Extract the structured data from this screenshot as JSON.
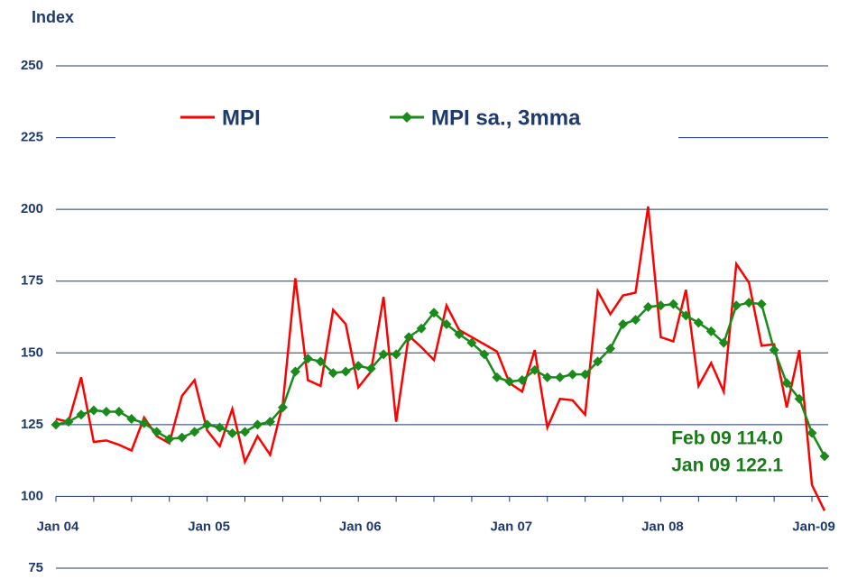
{
  "chart_data": {
    "type": "line",
    "title": "Index",
    "categories": [
      "Jan 04",
      null,
      null,
      null,
      null,
      null,
      null,
      null,
      null,
      null,
      null,
      null,
      "Jan 05",
      null,
      null,
      null,
      null,
      null,
      null,
      null,
      null,
      null,
      null,
      null,
      "Jan  06",
      null,
      null,
      null,
      null,
      null,
      null,
      null,
      null,
      null,
      null,
      null,
      "Jan  07",
      null,
      null,
      null,
      null,
      null,
      null,
      null,
      null,
      null,
      null,
      null,
      "Jan 08",
      null,
      null,
      null,
      null,
      null,
      null,
      null,
      null,
      null,
      null,
      null,
      "Jan-09",
      null
    ],
    "series": [
      {
        "name": "MPI",
        "color": "#ff0000",
        "marker": false,
        "values": [
          127,
          126,
          141.5,
          119,
          119.5,
          118,
          116,
          127.5,
          121,
          118.5,
          135,
          140.5,
          123,
          117.5,
          130.5,
          112,
          121,
          114.5,
          132,
          176,
          140.5,
          138.5,
          165,
          160,
          138,
          143.5,
          169.5,
          126,
          156,
          152,
          147.5,
          166.5,
          158,
          155.5,
          153,
          150.5,
          139.5,
          136.5,
          151,
          124,
          134,
          133.5,
          128.5,
          171.5,
          163.5,
          170,
          171,
          201,
          155.5,
          154,
          172,
          138.5,
          146.5,
          136.5,
          181,
          174.5,
          152.5,
          153,
          131,
          151,
          104,
          95
        ]
      },
      {
        "name": "MPI sa., 3mma",
        "color": "#1a8a1a",
        "marker": true,
        "values": [
          125,
          126,
          128.5,
          130,
          129.5,
          129.5,
          127,
          125.5,
          122.5,
          120,
          120.5,
          122.5,
          125,
          124,
          122,
          122.5,
          125,
          126,
          131,
          143.5,
          148,
          147,
          143,
          143.5,
          145.5,
          144.5,
          149.5,
          149.5,
          155.5,
          158.5,
          164,
          160,
          156.5,
          153.5,
          149.5,
          141.5,
          140,
          140.5,
          144,
          141.5,
          141.5,
          142.5,
          142.5,
          147,
          151.5,
          160,
          161.5,
          166,
          166.5,
          167,
          163,
          160.5,
          157.5,
          153.5,
          166.5,
          167.5,
          167,
          151,
          139.5,
          134,
          122.1,
          114
        ]
      }
    ],
    "annotations": [
      "Feb 09 114.0",
      "Jan 09 122.1"
    ],
    "ylim": [
      75,
      250
    ],
    "yticks": [
      75,
      100,
      125,
      150,
      175,
      200,
      225,
      250
    ],
    "grid": true
  }
}
